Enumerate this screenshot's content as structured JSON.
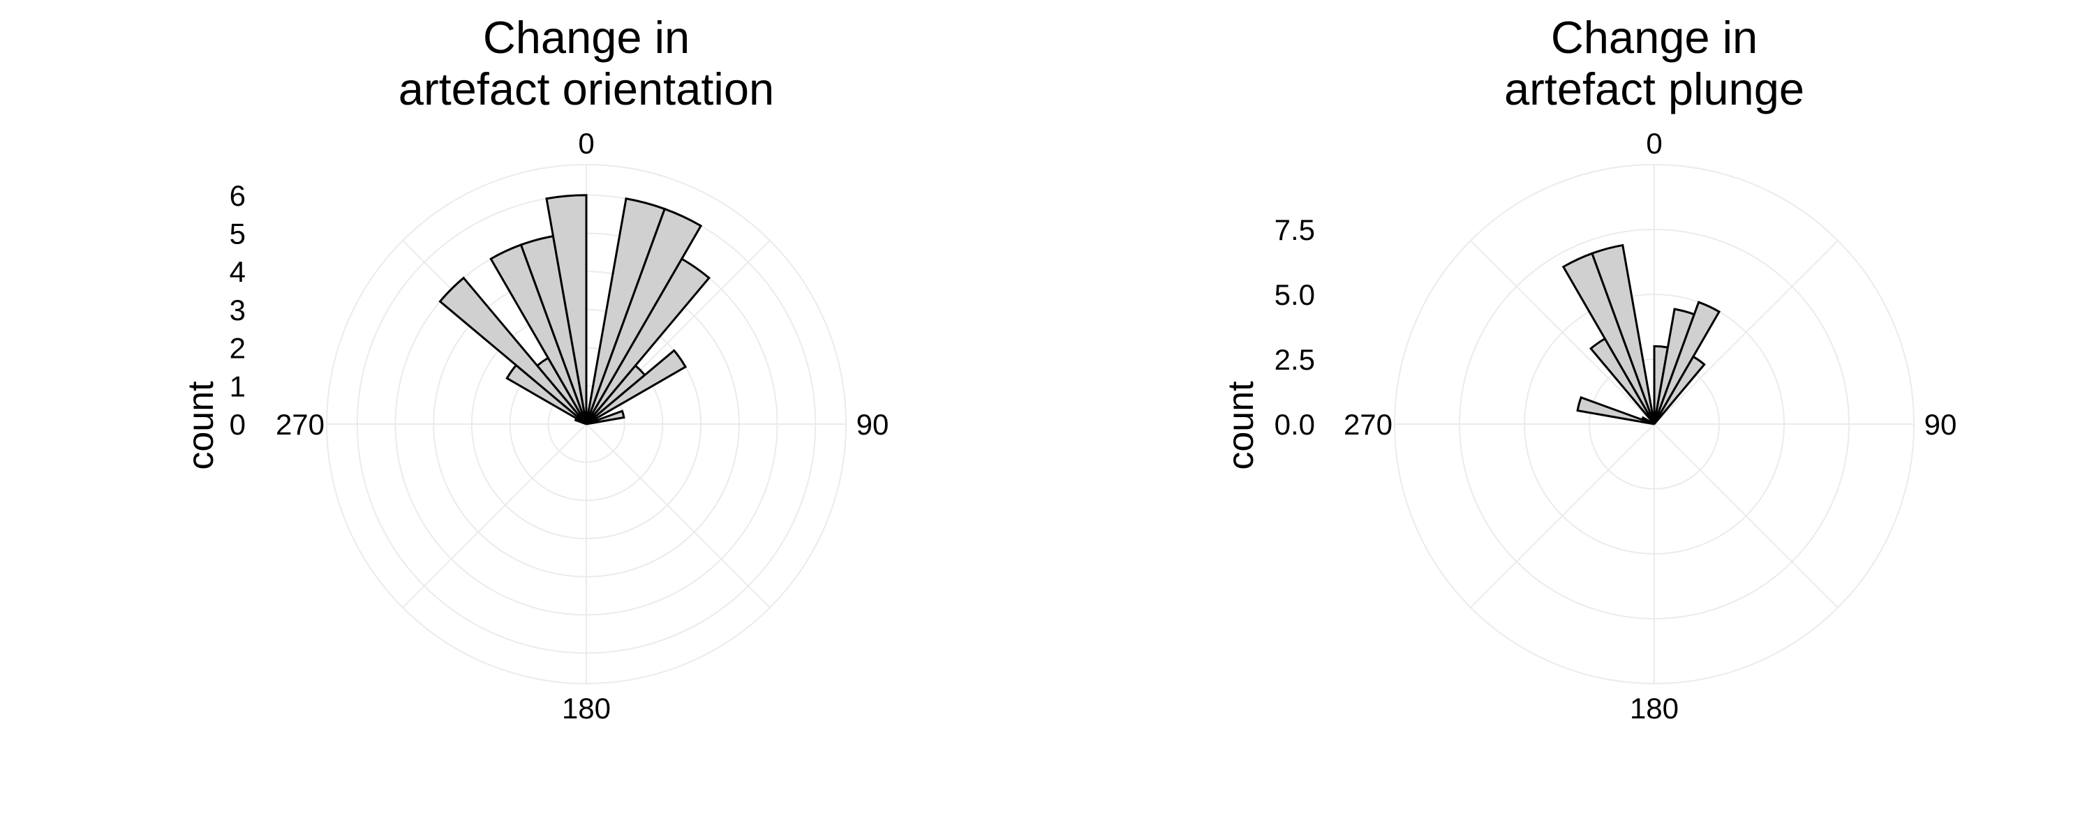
{
  "chart_data": [
    {
      "type": "bar",
      "projection": "polar",
      "title_lines": [
        "Change in",
        "artefact orientation"
      ],
      "ylabel": "count",
      "r_ticks": [
        "0",
        "1",
        "2",
        "3",
        "4",
        "5",
        "6"
      ],
      "r_tick_values": [
        0,
        1,
        2,
        3,
        4,
        5,
        6
      ],
      "r_max": 6.8,
      "theta_ticks": [
        "0",
        "90",
        "180",
        "270"
      ],
      "theta_tick_values": [
        0,
        90,
        180,
        270
      ],
      "bin_width": 10,
      "bins": [
        {
          "start": -70,
          "value": 0.3
        },
        {
          "start": -60,
          "value": 2.4
        },
        {
          "start": -50,
          "value": 5.0
        },
        {
          "start": -40,
          "value": 2.0
        },
        {
          "start": -30,
          "value": 5.0
        },
        {
          "start": -20,
          "value": 5.0
        },
        {
          "start": -10,
          "value": 6.0
        },
        {
          "start": 0,
          "value": 0.0
        },
        {
          "start": 10,
          "value": 6.0
        },
        {
          "start": 20,
          "value": 6.0
        },
        {
          "start": 30,
          "value": 5.0
        },
        {
          "start": 40,
          "value": 2.0
        },
        {
          "start": 50,
          "value": 3.0
        },
        {
          "start": 60,
          "value": 0.2
        },
        {
          "start": 70,
          "value": 1.0
        }
      ],
      "bar_fill": "#d0d0d0",
      "bar_stroke": "#000000",
      "grid": true,
      "grid_color": "#ebebeb"
    },
    {
      "type": "bar",
      "projection": "polar",
      "title_lines": [
        "Change in",
        "artefact plunge"
      ],
      "ylabel": "count",
      "r_ticks": [
        "0.0",
        "2.5",
        "5.0",
        "7.5"
      ],
      "r_tick_values": [
        0,
        2.5,
        5.0,
        7.5
      ],
      "r_max": 10.0,
      "theta_ticks": [
        "0",
        "90",
        "180",
        "270"
      ],
      "theta_tick_values": [
        0,
        90,
        180,
        270
      ],
      "bin_width": 10,
      "bins": [
        {
          "start": -80,
          "value": 3.0
        },
        {
          "start": -70,
          "value": 0.5
        },
        {
          "start": -40,
          "value": 3.8
        },
        {
          "start": -30,
          "value": 7.0
        },
        {
          "start": -20,
          "value": 7.0
        },
        {
          "start": 0,
          "value": 3.0
        },
        {
          "start": 10,
          "value": 4.5
        },
        {
          "start": 20,
          "value": 5.0
        },
        {
          "start": 30,
          "value": 3.0
        }
      ],
      "bar_fill": "#d0d0d0",
      "bar_stroke": "#000000",
      "grid": true,
      "grid_color": "#ebebeb"
    }
  ]
}
